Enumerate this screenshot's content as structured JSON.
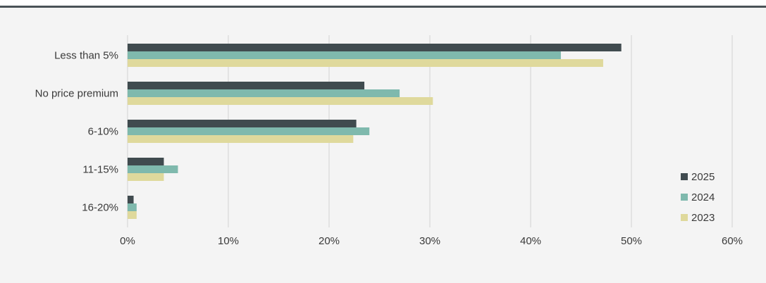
{
  "chart_data": {
    "type": "bar",
    "orientation": "horizontal",
    "categories": [
      "Less than 5%",
      "No price premium",
      "6-10%",
      "11-15%",
      "16-20%"
    ],
    "series": [
      {
        "name": "2025",
        "color": "#404b4f",
        "values": [
          49,
          23.5,
          22.7,
          3.6,
          0.6
        ]
      },
      {
        "name": "2024",
        "color": "#7fb9ad",
        "values": [
          43,
          27,
          24,
          5,
          0.9
        ]
      },
      {
        "name": "2023",
        "color": "#dfd99c",
        "values": [
          47.2,
          30.3,
          22.4,
          3.6,
          0.9
        ]
      }
    ],
    "xlim": [
      0,
      60
    ],
    "x_ticks": [
      0,
      10,
      20,
      30,
      40,
      50,
      60
    ],
    "x_tick_labels": [
      "0%",
      "10%",
      "20%",
      "30%",
      "40%",
      "50%",
      "60%"
    ],
    "grid": "vertical",
    "legend_position": "bottom-right"
  }
}
